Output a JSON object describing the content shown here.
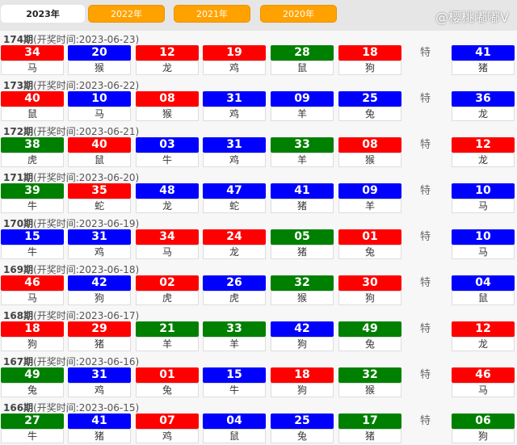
{
  "tabs": [
    "2023年",
    "2022年",
    "2021年",
    "2020年"
  ],
  "special_label": "特",
  "colors": {
    "red": "#ff0000",
    "blue": "#0000ff",
    "green": "#008000"
  },
  "watermark": "@樱桃嘟嘟V",
  "draws": [
    {
      "issue": "174期",
      "date": "(开奖时间:2023-06-23)",
      "balls": [
        [
          "34",
          "马",
          "red"
        ],
        [
          "20",
          "猴",
          "blue"
        ],
        [
          "12",
          "龙",
          "red"
        ],
        [
          "19",
          "鸡",
          "red"
        ],
        [
          "28",
          "鼠",
          "green"
        ],
        [
          "18",
          "狗",
          "red"
        ]
      ],
      "special": [
        "41",
        "猪",
        "blue"
      ]
    },
    {
      "issue": "173期",
      "date": "(开奖时间:2023-06-22)",
      "balls": [
        [
          "40",
          "鼠",
          "red"
        ],
        [
          "10",
          "马",
          "blue"
        ],
        [
          "08",
          "猴",
          "red"
        ],
        [
          "31",
          "鸡",
          "blue"
        ],
        [
          "09",
          "羊",
          "blue"
        ],
        [
          "25",
          "兔",
          "blue"
        ]
      ],
      "special": [
        "36",
        "龙",
        "blue"
      ]
    },
    {
      "issue": "172期",
      "date": "(开奖时间:2023-06-21)",
      "balls": [
        [
          "38",
          "虎",
          "green"
        ],
        [
          "40",
          "鼠",
          "red"
        ],
        [
          "03",
          "牛",
          "blue"
        ],
        [
          "31",
          "鸡",
          "blue"
        ],
        [
          "33",
          "羊",
          "green"
        ],
        [
          "08",
          "猴",
          "red"
        ]
      ],
      "special": [
        "12",
        "龙",
        "red"
      ]
    },
    {
      "issue": "171期",
      "date": "(开奖时间:2023-06-20)",
      "balls": [
        [
          "39",
          "牛",
          "green"
        ],
        [
          "35",
          "蛇",
          "red"
        ],
        [
          "48",
          "龙",
          "blue"
        ],
        [
          "47",
          "蛇",
          "blue"
        ],
        [
          "41",
          "猪",
          "blue"
        ],
        [
          "09",
          "羊",
          "blue"
        ]
      ],
      "special": [
        "10",
        "马",
        "blue"
      ]
    },
    {
      "issue": "170期",
      "date": "(开奖时间:2023-06-19)",
      "balls": [
        [
          "15",
          "牛",
          "blue"
        ],
        [
          "31",
          "鸡",
          "blue"
        ],
        [
          "34",
          "马",
          "red"
        ],
        [
          "24",
          "龙",
          "red"
        ],
        [
          "05",
          "猪",
          "green"
        ],
        [
          "01",
          "兔",
          "red"
        ]
      ],
      "special": [
        "10",
        "马",
        "blue"
      ]
    },
    {
      "issue": "169期",
      "date": "(开奖时间:2023-06-18)",
      "balls": [
        [
          "46",
          "马",
          "red"
        ],
        [
          "42",
          "狗",
          "blue"
        ],
        [
          "02",
          "虎",
          "red"
        ],
        [
          "26",
          "虎",
          "blue"
        ],
        [
          "32",
          "猴",
          "green"
        ],
        [
          "30",
          "狗",
          "red"
        ]
      ],
      "special": [
        "04",
        "鼠",
        "blue"
      ]
    },
    {
      "issue": "168期",
      "date": "(开奖时间:2023-06-17)",
      "balls": [
        [
          "18",
          "狗",
          "red"
        ],
        [
          "29",
          "猪",
          "red"
        ],
        [
          "21",
          "羊",
          "green"
        ],
        [
          "33",
          "羊",
          "green"
        ],
        [
          "42",
          "狗",
          "blue"
        ],
        [
          "49",
          "兔",
          "green"
        ]
      ],
      "special": [
        "12",
        "龙",
        "red"
      ]
    },
    {
      "issue": "167期",
      "date": "(开奖时间:2023-06-16)",
      "balls": [
        [
          "49",
          "兔",
          "green"
        ],
        [
          "31",
          "鸡",
          "blue"
        ],
        [
          "01",
          "兔",
          "red"
        ],
        [
          "15",
          "牛",
          "blue"
        ],
        [
          "18",
          "狗",
          "red"
        ],
        [
          "32",
          "猴",
          "green"
        ]
      ],
      "special": [
        "46",
        "马",
        "red"
      ]
    },
    {
      "issue": "166期",
      "date": "(开奖时间:2023-06-15)",
      "balls": [
        [
          "27",
          "牛",
          "green"
        ],
        [
          "41",
          "猪",
          "blue"
        ],
        [
          "07",
          "鸡",
          "red"
        ],
        [
          "04",
          "鼠",
          "blue"
        ],
        [
          "25",
          "兔",
          "blue"
        ],
        [
          "17",
          "猪",
          "green"
        ]
      ],
      "special": [
        "06",
        "狗",
        "green"
      ]
    }
  ]
}
